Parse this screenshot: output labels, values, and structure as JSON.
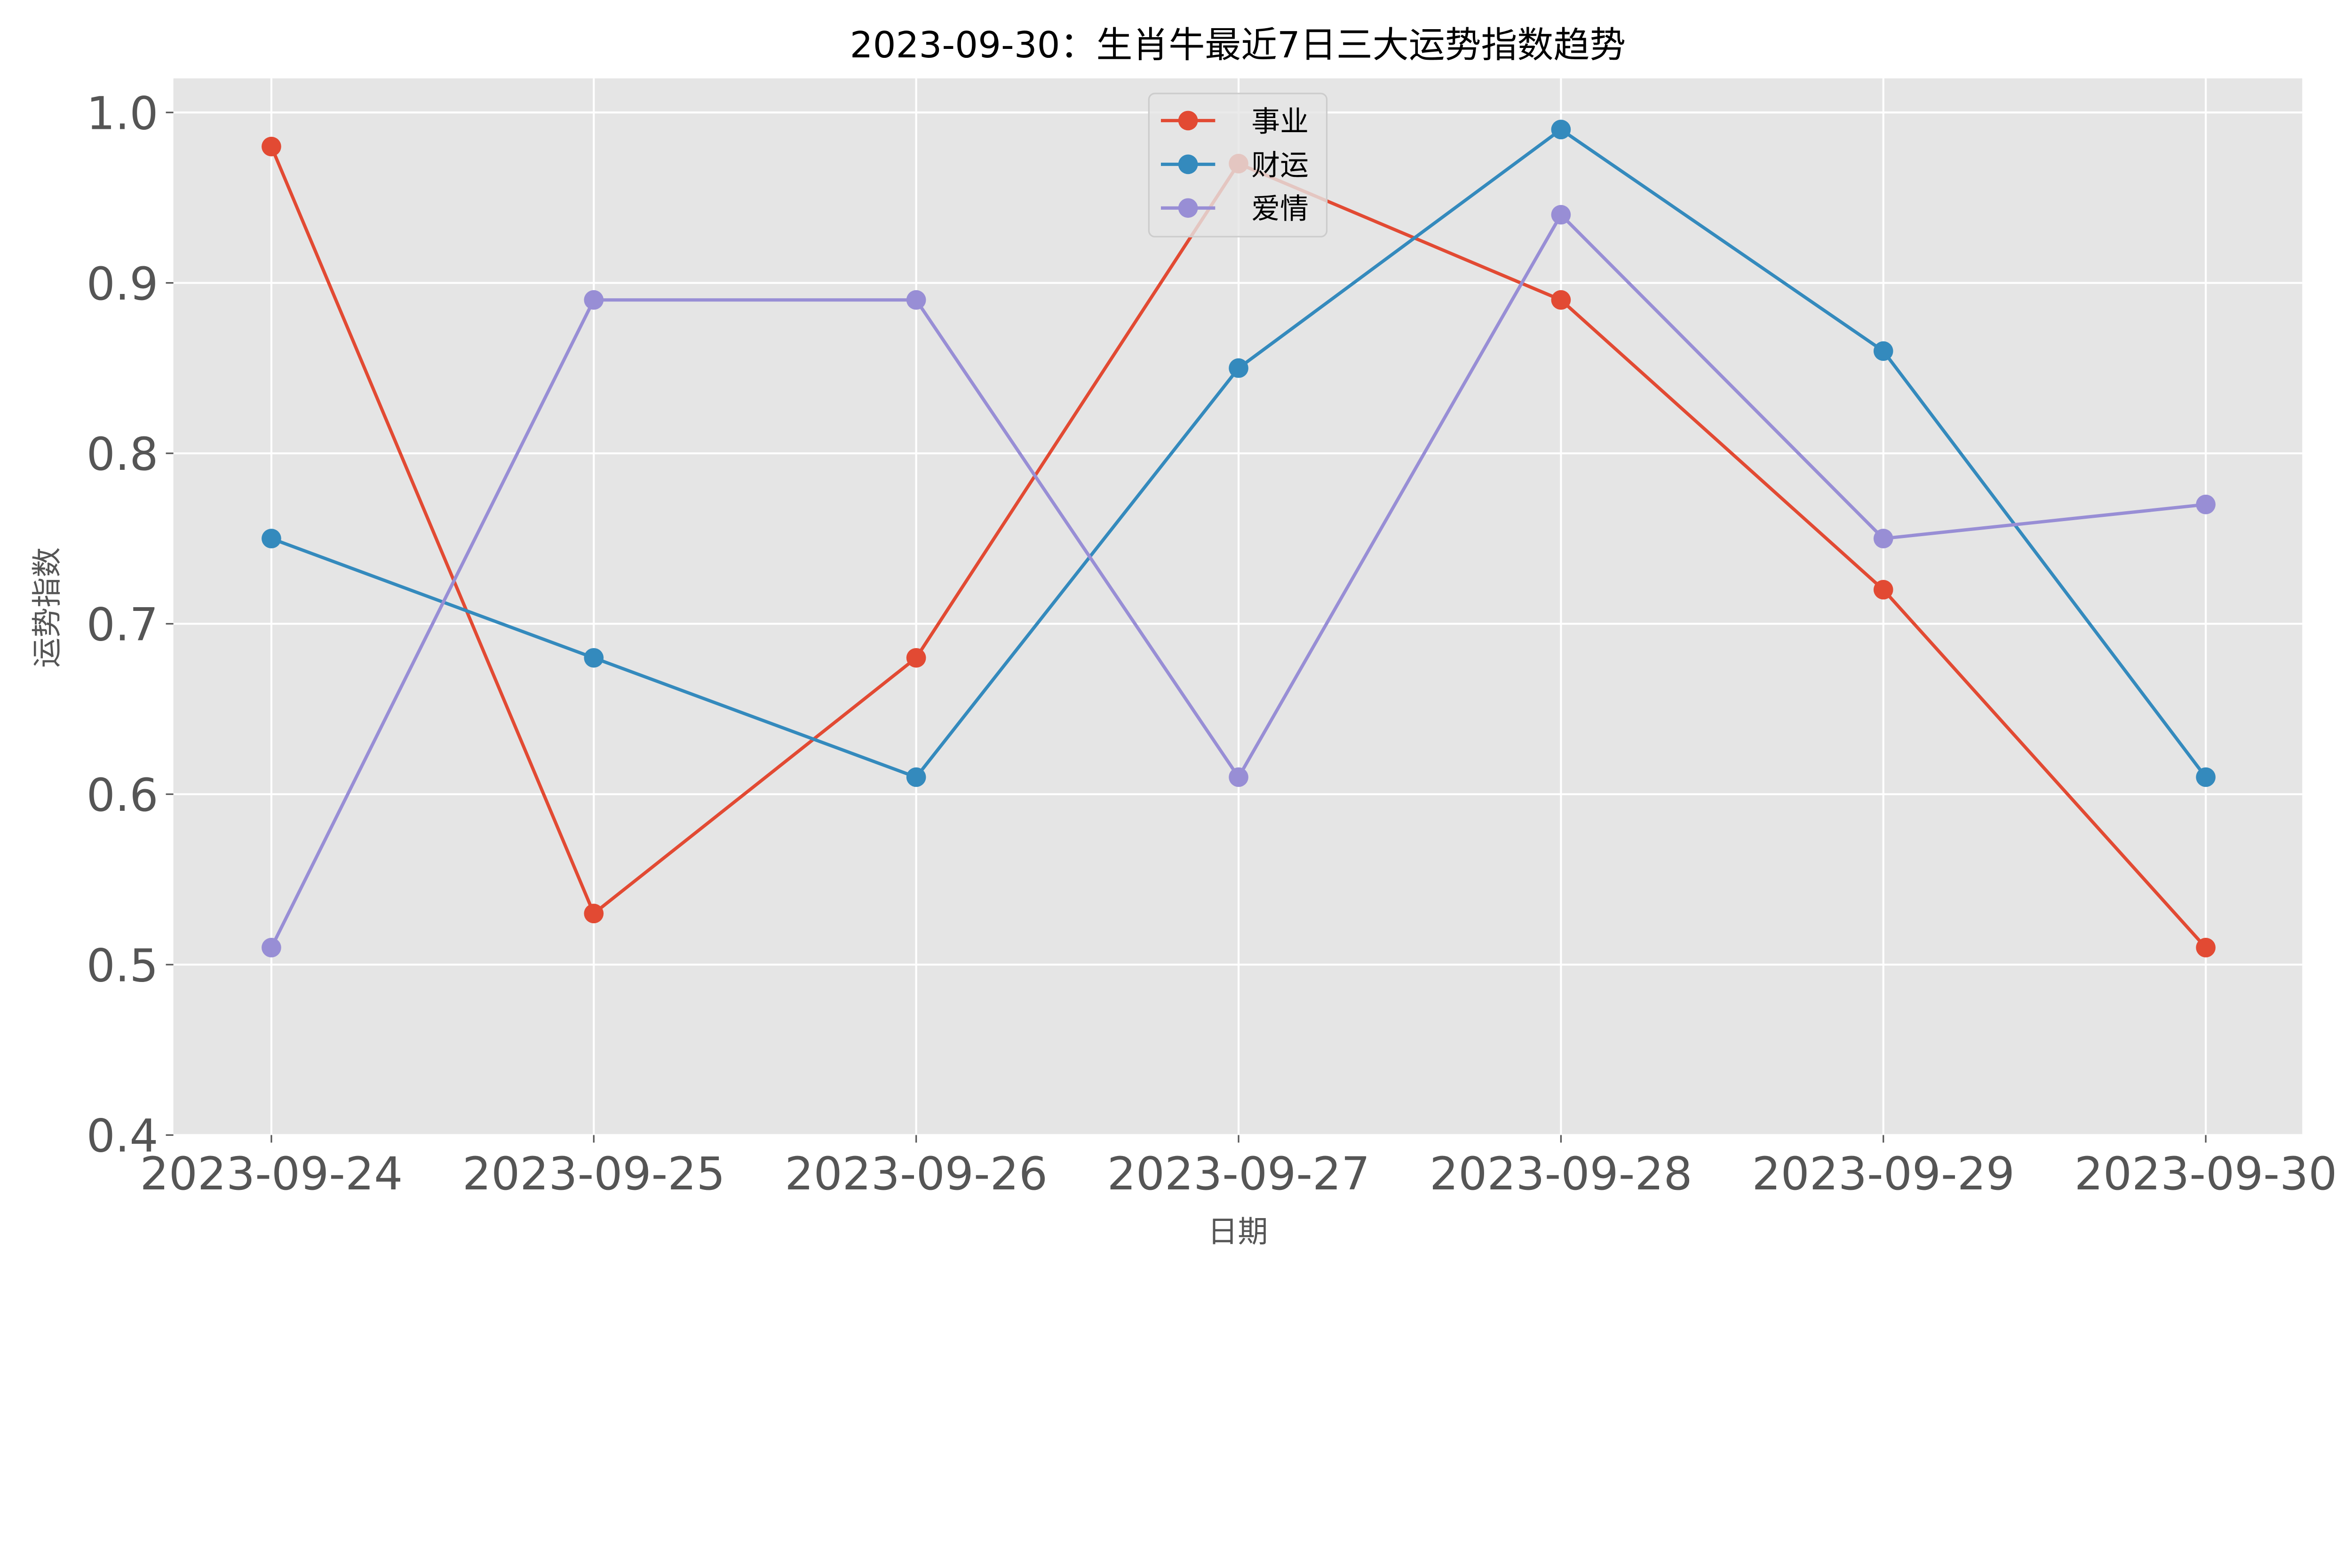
{
  "chart_data": {
    "type": "line",
    "title": "2023-09-30：生肖牛最近7日三大运势指数趋势",
    "xlabel": "日期",
    "ylabel": "运势指数",
    "categories": [
      "2023-09-24",
      "2023-09-25",
      "2023-09-26",
      "2023-09-27",
      "2023-09-28",
      "2023-09-29",
      "2023-09-30"
    ],
    "ylim": [
      0.4,
      1.02
    ],
    "yticks": [
      0.4,
      0.5,
      0.6,
      0.7,
      0.8,
      0.9,
      1.0
    ],
    "ytick_labels": [
      "0.4",
      "0.5",
      "0.6",
      "0.7",
      "0.8",
      "0.9",
      "1.0"
    ],
    "grid": true,
    "legend_position": "top-center",
    "series": [
      {
        "name": "事业",
        "color": "#E24A33",
        "values": [
          0.98,
          0.53,
          0.68,
          0.97,
          0.89,
          0.72,
          0.51
        ]
      },
      {
        "name": "财运",
        "color": "#348ABD",
        "values": [
          0.75,
          0.68,
          0.61,
          0.85,
          0.99,
          0.86,
          0.61
        ]
      },
      {
        "name": "爱情",
        "color": "#988ED5",
        "values": [
          0.51,
          0.89,
          0.89,
          0.61,
          0.94,
          0.75,
          0.77
        ]
      }
    ]
  }
}
